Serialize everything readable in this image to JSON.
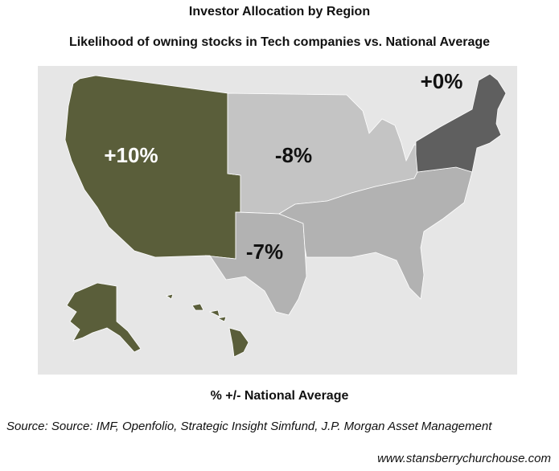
{
  "title": "Investor Allocation by Region",
  "subtitle": "Likelihood of owning stocks in Tech companies vs. National Average",
  "regions": [
    {
      "name": "West",
      "value_label": "+10%",
      "color": "#5a5e3a",
      "label_color": "#ffffff"
    },
    {
      "name": "Midwest",
      "value_label": "-8%",
      "color": "#c4c4c4",
      "label_color": "#111111"
    },
    {
      "name": "Southwest",
      "value_label": "-7%",
      "color": "#b2b2b2",
      "label_color": "#111111"
    },
    {
      "name": "Southeast",
      "value_label": "",
      "color": "#b2b2b2",
      "label_color": "#111111"
    },
    {
      "name": "Northeast",
      "value_label": "+0%",
      "color": "#5f5f5f",
      "label_color": "#111111"
    }
  ],
  "legend_label": "% +/- National Average",
  "source": "Source: Source: IMF, Openfolio, Strategic Insight Simfund, J.P. Morgan Asset Management",
  "website": "www.stansberrychurchouse.com"
}
